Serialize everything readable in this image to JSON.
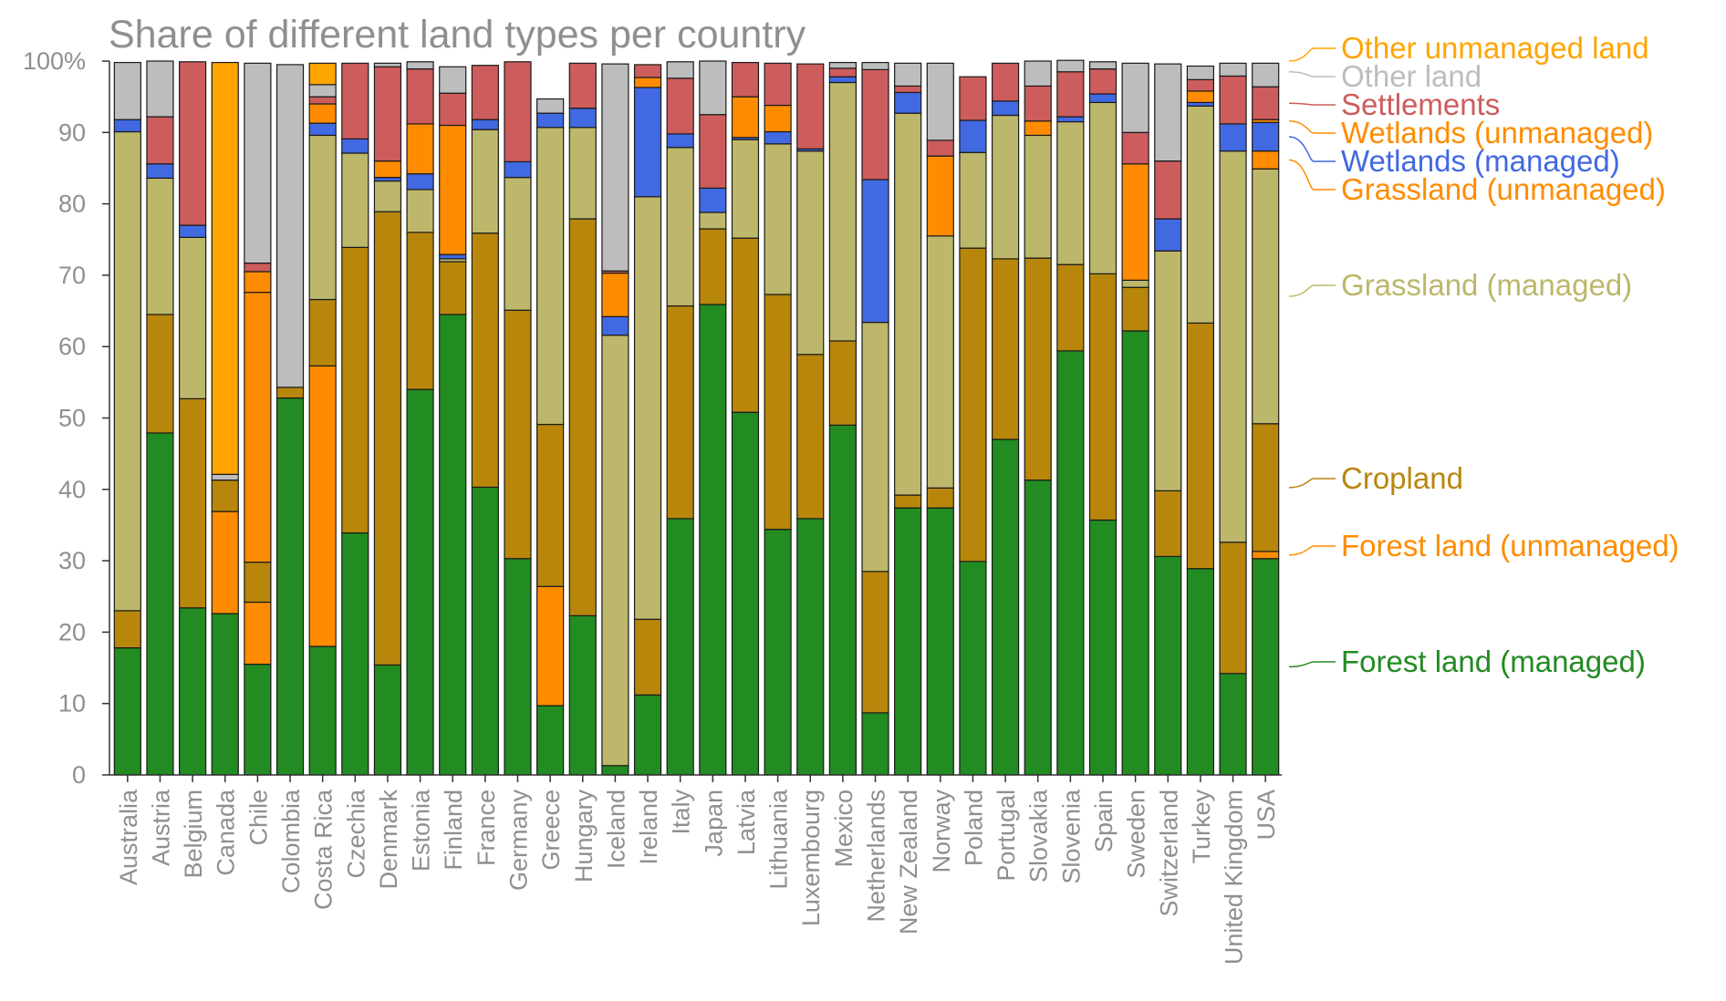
{
  "chart_data": {
    "type": "bar",
    "stacked": true,
    "title": "Share of different land types per country",
    "xlabel": "",
    "ylabel": "",
    "ylim": [
      0,
      100
    ],
    "yticks": [
      {
        "value": 0,
        "label": "0"
      },
      {
        "value": 10,
        "label": "10"
      },
      {
        "value": 20,
        "label": "20"
      },
      {
        "value": 30,
        "label": "30"
      },
      {
        "value": 40,
        "label": "40"
      },
      {
        "value": 50,
        "label": "50"
      },
      {
        "value": 60,
        "label": "60"
      },
      {
        "value": 70,
        "label": "70"
      },
      {
        "value": 80,
        "label": "80"
      },
      {
        "value": 90,
        "label": "90"
      },
      {
        "value": 100,
        "label": "100%"
      }
    ],
    "categories": [
      "Australia",
      "Austria",
      "Belgium",
      "Canada",
      "Chile",
      "Colombia",
      "Costa Rica",
      "Czechia",
      "Denmark",
      "Estonia",
      "Finland",
      "France",
      "Germany",
      "Greece",
      "Hungary",
      "Iceland",
      "Ireland",
      "Italy",
      "Japan",
      "Latvia",
      "Lithuania",
      "Luxembourg",
      "Mexico",
      "Netherlands",
      "New Zealand",
      "Norway",
      "Poland",
      "Portugal",
      "Slovakia",
      "Slovenia",
      "Spain",
      "Sweden",
      "Switzerland",
      "Turkey",
      "United Kingdom",
      "USA"
    ],
    "series": [
      {
        "name": "Forest land (managed)",
        "color": "#228b22",
        "values": [
          17.8,
          47.9,
          23.4,
          22.6,
          15.5,
          52.8,
          18.0,
          33.9,
          15.4,
          54.0,
          64.5,
          40.3,
          30.3,
          9.7,
          22.3,
          1.3,
          11.2,
          35.9,
          65.9,
          50.8,
          34.4,
          35.9,
          49.0,
          8.7,
          37.4,
          37.4,
          29.9,
          47.0,
          41.3,
          59.4,
          35.7,
          62.2,
          30.6,
          28.9,
          14.2,
          30.3
        ]
      },
      {
        "name": "Forest land (unmanaged)",
        "color": "#ff8c00",
        "values": [
          0,
          0,
          0,
          14.3,
          8.7,
          0,
          39.3,
          0,
          0,
          0,
          0,
          0,
          0,
          16.7,
          0,
          0,
          0,
          0,
          0,
          0,
          0,
          0,
          0,
          0,
          0,
          0,
          0,
          0,
          0,
          0,
          0,
          0,
          0,
          0,
          0,
          1.0
        ]
      },
      {
        "name": "Cropland",
        "color": "#b8860b",
        "values": [
          5.2,
          16.6,
          29.3,
          4.4,
          5.6,
          1.5,
          9.3,
          40.0,
          63.5,
          22.0,
          7.4,
          35.6,
          34.8,
          22.7,
          55.6,
          0,
          10.6,
          29.8,
          10.6,
          24.4,
          32.9,
          23.0,
          11.8,
          19.8,
          1.8,
          2.8,
          43.9,
          25.3,
          31.1,
          12.1,
          34.5,
          6.1,
          9.2,
          34.4,
          18.4,
          17.9
        ]
      },
      {
        "name": "Grassland (managed)",
        "color": "#bdb76b",
        "values": [
          67.1,
          19.1,
          22.6,
          0,
          0,
          0,
          23.0,
          13.2,
          4.3,
          6.0,
          0.4,
          14.5,
          18.6,
          41.6,
          12.8,
          60.3,
          59.2,
          22.2,
          2.3,
          13.8,
          21.1,
          28.5,
          36.2,
          34.9,
          53.5,
          35.3,
          13.4,
          20.1,
          17.2,
          20.0,
          24.0,
          1.0,
          33.6,
          30.4,
          54.8,
          35.7
        ]
      },
      {
        "name": "Grassland (unmanaged)",
        "color": "#ff8c00",
        "values": [
          0,
          0,
          0,
          0,
          37.8,
          0,
          0,
          0,
          0,
          0,
          0,
          0,
          0,
          0,
          0,
          0,
          0,
          0,
          0,
          0,
          0,
          0,
          0,
          0,
          0,
          0,
          0,
          0,
          0,
          0,
          0,
          0,
          0,
          0,
          0,
          2.5
        ]
      },
      {
        "name": "Wetlands (managed)",
        "color": "#4169e1",
        "values": [
          1.7,
          2.0,
          1.7,
          0,
          0,
          0,
          1.7,
          2.0,
          0.5,
          2.2,
          0.6,
          1.4,
          2.2,
          2.0,
          2.7,
          2.6,
          15.3,
          1.9,
          3.4,
          0.3,
          1.7,
          0.3,
          0.8,
          20.0,
          2.9,
          0,
          4.5,
          2.0,
          0,
          0.7,
          1.2,
          0,
          4.5,
          0.5,
          3.8,
          4.0
        ]
      },
      {
        "name": "Wetlands (unmanaged)",
        "color": "#ff8c00",
        "values": [
          0,
          0,
          0,
          0,
          2.9,
          0,
          2.7,
          0,
          2.3,
          7.0,
          18.1,
          0,
          0,
          0,
          0,
          6.1,
          1.4,
          0,
          0,
          5.7,
          3.7,
          0,
          0,
          0,
          0,
          11.2,
          0,
          0,
          2.0,
          0,
          0,
          16.3,
          0,
          1.6,
          0,
          0.4
        ]
      },
      {
        "name": "Settlements",
        "color": "#cd5c5c",
        "values": [
          0,
          6.6,
          22.9,
          0,
          1.2,
          0,
          1.0,
          10.6,
          13.2,
          7.7,
          4.5,
          7.6,
          14.0,
          0,
          6.3,
          0.3,
          1.8,
          7.8,
          10.3,
          4.8,
          5.9,
          11.9,
          1.2,
          15.4,
          0.9,
          2.2,
          6.1,
          5.3,
          4.9,
          6.3,
          3.5,
          4.4,
          8.1,
          1.6,
          6.7,
          4.6
        ]
      },
      {
        "name": "Other land",
        "color": "#bdbdbd",
        "values": [
          8.0,
          7.8,
          0,
          0.8,
          28.0,
          45.2,
          1.7,
          0,
          0.5,
          1.0,
          3.7,
          0,
          0,
          2.0,
          0,
          29.0,
          0,
          2.3,
          7.5,
          0,
          0,
          0,
          0.8,
          1.0,
          3.2,
          10.8,
          0,
          0,
          3.5,
          1.6,
          1.0,
          9.7,
          13.6,
          1.9,
          1.8,
          3.3
        ]
      },
      {
        "name": "Other unmanaged land",
        "color": "#ffa500",
        "values": [
          0,
          0,
          0,
          57.7,
          0,
          0,
          3.0,
          0,
          0,
          0,
          0,
          0,
          0,
          0,
          0,
          0,
          0,
          0,
          0,
          0,
          0,
          0,
          0,
          0,
          0,
          0,
          0,
          0,
          0,
          0,
          0,
          0,
          0,
          0,
          0,
          0
        ]
      }
    ],
    "legend": {
      "placement": "right, labels beside bar ends",
      "entries": [
        {
          "series": "Other unmanaged land",
          "label": "Other unmanaged land",
          "color": "#ffa500"
        },
        {
          "series": "Other land",
          "label": "Other land",
          "color": "#bdbdbd"
        },
        {
          "series": "Settlements",
          "label": "Settlements",
          "color": "#cd5c5c"
        },
        {
          "series": "Wetlands (unmanaged)",
          "label": "Wetlands (unmanaged)",
          "color": "#ff8c00"
        },
        {
          "series": "Wetlands (managed)",
          "label": "Wetlands (managed)",
          "color": "#4169e1"
        },
        {
          "series": "Grassland (unmanaged)",
          "label": "Grassland (unmanaged)",
          "color": "#ff8c00"
        },
        {
          "series": "Grassland (managed)",
          "label": "Grassland (managed)",
          "color": "#bdb76b"
        },
        {
          "series": "Cropland",
          "label": "Cropland",
          "color": "#b8860b"
        },
        {
          "series": "Forest land (unmanaged)",
          "label": "Forest land (unmanaged)",
          "color": "#ff8c00"
        },
        {
          "series": "Forest land (managed)",
          "label": "Forest land (managed)",
          "color": "#228b22"
        }
      ]
    }
  }
}
